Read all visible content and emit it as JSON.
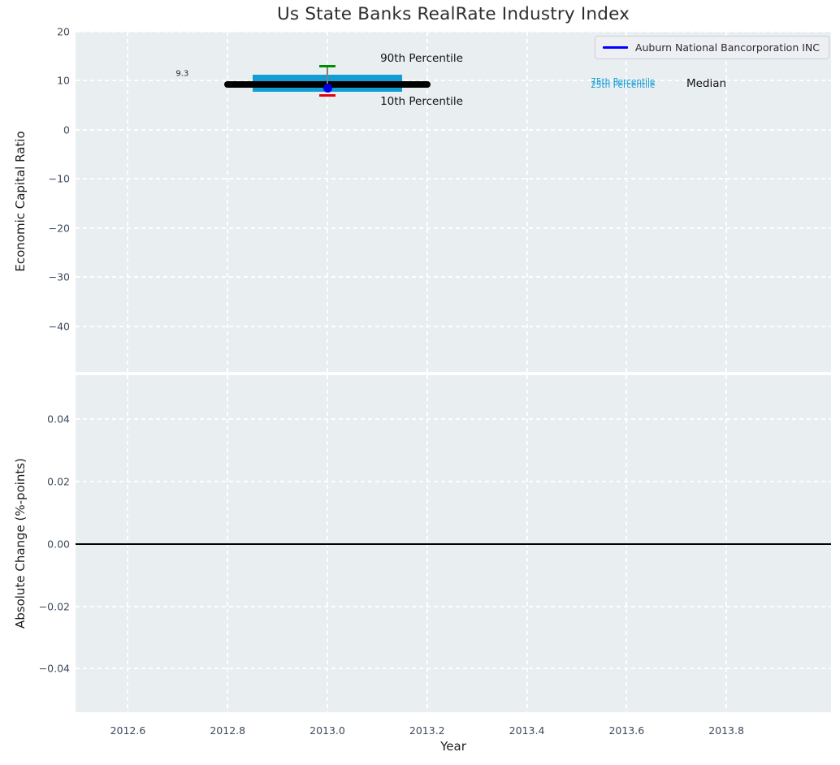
{
  "figure": {
    "title": "Us State Banks RealRate Industry Index",
    "legend": {
      "label": "Auburn National Bancorporation INC",
      "line_color": "#0000ff"
    }
  },
  "chart_data": [
    {
      "type": "bar",
      "subtype": "box-whisker-timeline",
      "panel": "economic-capital-ratio",
      "title": "Us State Banks RealRate Industry Index",
      "xlabel": "",
      "ylabel": "Economic Capital Ratio",
      "xlim": [
        2012.495,
        2014.01
      ],
      "ylim": [
        -49.3,
        20.0
      ],
      "grid": true,
      "legend_position": "upper right",
      "xticks": [
        2012.6,
        2012.8,
        2013.0,
        2013.2,
        2013.4,
        2013.6,
        2013.8
      ],
      "yticks": [
        20,
        10,
        0,
        -10,
        -20,
        -30,
        -40
      ],
      "ytick_labels": [
        "20",
        "10",
        "0",
        "−10",
        "−20",
        "−30",
        "−40"
      ],
      "box": {
        "x": 2013.0,
        "median": 9.3,
        "p75": 11.2,
        "p25": 7.8,
        "p90": 13.0,
        "p10": 7.0,
        "median_span": [
          2012.8,
          2013.2
        ],
        "box_span": [
          2012.85,
          2013.15
        ],
        "box_color": "#149dd4",
        "median_color": "#000000",
        "p90_color": "#008c00",
        "p10_color": "#e6000a",
        "whisker_color": "#808080"
      },
      "series": [
        {
          "name": "Auburn National Bancorporation INC",
          "x": [
            2013.0
          ],
          "values": [
            8.5
          ],
          "color": "#0000e0"
        }
      ],
      "annotations": [
        {
          "id": "median-value",
          "text": "9.3",
          "x": 2012.709,
          "y": 11.35,
          "color": "#2a2a2a",
          "size": 10,
          "anchor": "middle"
        },
        {
          "id": "p90-label",
          "text": "90th Percentile",
          "x": 2013.106,
          "y": 14.55,
          "color": "#121212",
          "size": 13.5,
          "anchor": "start"
        },
        {
          "id": "p10-label",
          "text": "10th Percentile",
          "x": 2013.106,
          "y": 5.75,
          "color": "#121212",
          "size": 13.5,
          "anchor": "start"
        },
        {
          "id": "p75-label",
          "text": "75th Percentile",
          "x": 2013.528,
          "y": 9.72,
          "color": "#149dd4",
          "size": 10.5,
          "anchor": "start"
        },
        {
          "id": "p25-label",
          "text": "25th Percentile",
          "x": 2013.528,
          "y": 9.15,
          "color": "#149dd4",
          "size": 10.5,
          "anchor": "start"
        },
        {
          "id": "median-label",
          "text": "Median",
          "x": 2013.72,
          "y": 9.45,
          "color": "#121212",
          "size": 13.5,
          "anchor": "start"
        }
      ]
    },
    {
      "type": "line",
      "panel": "absolute-change",
      "xlabel": "Year",
      "ylabel": "Absolute Change (%-points)",
      "xlim": [
        2012.495,
        2014.01
      ],
      "ylim": [
        -0.054,
        0.0542
      ],
      "grid": true,
      "xticks": [
        2012.6,
        2012.8,
        2013.0,
        2013.2,
        2013.4,
        2013.6,
        2013.8
      ],
      "xtick_labels": [
        "2012.6",
        "2012.8",
        "2013.0",
        "2013.2",
        "2013.4",
        "2013.6",
        "2013.8"
      ],
      "yticks": [
        0.04,
        0.02,
        0.0,
        -0.02,
        -0.04
      ],
      "ytick_labels": [
        "0.04",
        "0.02",
        "0.00",
        "−0.02",
        "−0.04"
      ],
      "zero_line": {
        "y": 0.0,
        "color": "#000000"
      }
    }
  ]
}
